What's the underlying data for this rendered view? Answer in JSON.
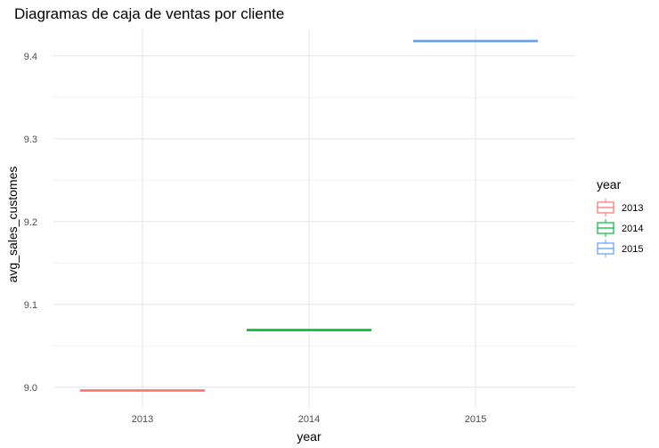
{
  "chart_data": {
    "type": "boxplot",
    "title": "Diagramas de caja de ventas por cliente",
    "xlabel": "year",
    "ylabel": "avg_sales_customes",
    "categories": [
      "2013",
      "2014",
      "2015"
    ],
    "values": [
      8.996,
      9.069,
      9.418
    ],
    "colors": [
      "#F8766D",
      "#00BA38",
      "#619CFF"
    ],
    "ylim": [
      8.975,
      9.432
    ],
    "yticks": [
      9.0,
      9.1,
      9.2,
      9.3,
      9.4
    ],
    "ytick_labels": [
      "9.0",
      "9.1",
      "9.2",
      "9.3",
      "9.4"
    ],
    "grid": true,
    "legend": {
      "title": "year",
      "position": "right",
      "entries": [
        "2013",
        "2014",
        "2015"
      ]
    }
  }
}
